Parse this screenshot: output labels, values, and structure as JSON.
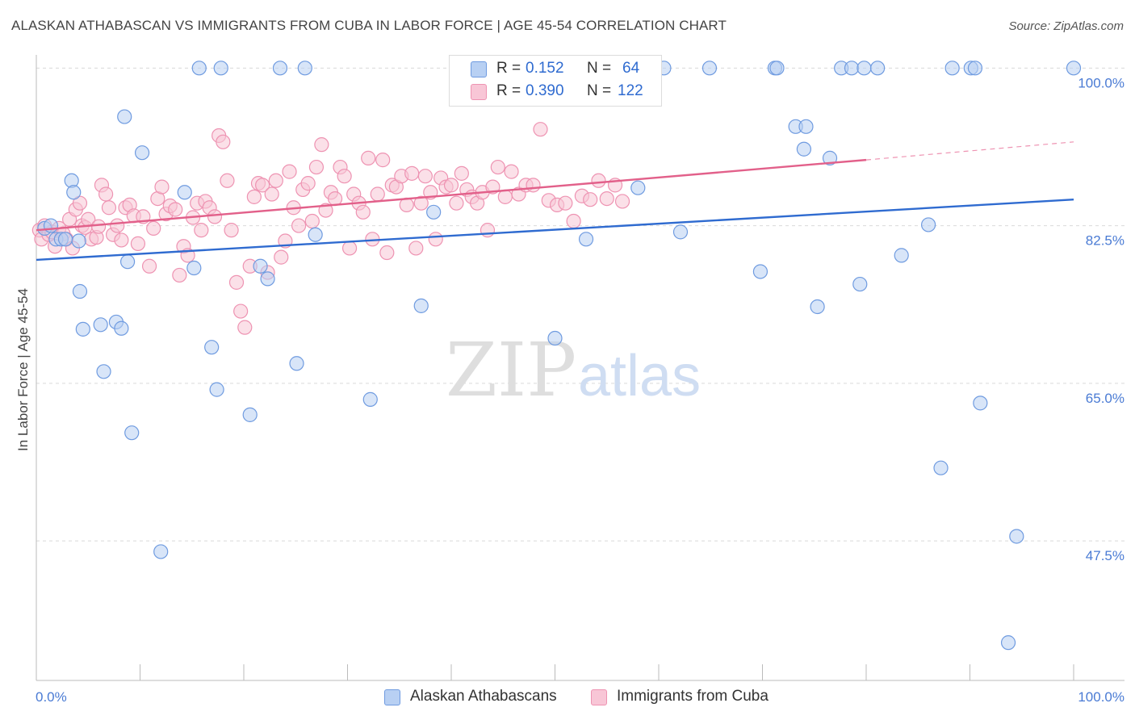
{
  "header": {
    "title": "ALASKAN ATHABASCAN VS IMMIGRANTS FROM CUBA IN LABOR FORCE | AGE 45-54 CORRELATION CHART",
    "source": "Source: ZipAtlas.com"
  },
  "watermark": {
    "zip": "ZIP",
    "atlas": "atlas"
  },
  "legend": {
    "r_label": "R =",
    "n_label": "N =",
    "series": [
      {
        "r": "0.152",
        "n": "64"
      },
      {
        "r": "0.390",
        "n": "122"
      }
    ]
  },
  "colors": {
    "blue_fill": "#b8d0f3",
    "blue_stroke": "#6f9be0",
    "blue_line": "#2f6bd0",
    "pink_fill": "#f8c6d6",
    "pink_stroke": "#ee93b2",
    "pink_line": "#e2608a",
    "grid": "#d9d9d9",
    "tick_text": "#4a7bd4"
  },
  "chart_data": {
    "type": "scatter",
    "xlabel": "",
    "ylabel": "In Labor Force | Age 45-54",
    "xlim": [
      0,
      100
    ],
    "ylim": [
      32,
      102
    ],
    "x_tick_labels": [
      "0.0%",
      "100.0%"
    ],
    "y_ticks": [
      47.5,
      65.0,
      82.5,
      100.0
    ],
    "y_tick_labels": [
      "47.5%",
      "65.0%",
      "82.5%",
      "100.0%"
    ],
    "grid": true,
    "legend_position": "top-center",
    "series": [
      {
        "name": "Alaskan Athabascans",
        "trend": {
          "x": [
            0,
            100
          ],
          "y": [
            78.7,
            85.4
          ]
        },
        "points": [
          [
            0.8,
            82.2
          ],
          [
            1.4,
            82.5
          ],
          [
            1.9,
            81.0
          ],
          [
            2.4,
            81.0
          ],
          [
            2.8,
            81.0
          ],
          [
            3.4,
            87.5
          ],
          [
            3.6,
            86.2
          ],
          [
            4.1,
            80.8
          ],
          [
            4.2,
            75.2
          ],
          [
            4.5,
            71.0
          ],
          [
            6.2,
            71.5
          ],
          [
            6.5,
            66.3
          ],
          [
            7.7,
            71.8
          ],
          [
            8.2,
            71.1
          ],
          [
            8.5,
            94.6
          ],
          [
            8.8,
            78.5
          ],
          [
            9.2,
            59.5
          ],
          [
            10.2,
            90.6
          ],
          [
            12.0,
            46.3
          ],
          [
            14.3,
            86.2
          ],
          [
            15.2,
            77.8
          ],
          [
            15.7,
            100.0
          ],
          [
            16.9,
            69.0
          ],
          [
            17.4,
            64.3
          ],
          [
            17.8,
            100.0
          ],
          [
            20.6,
            61.5
          ],
          [
            21.6,
            78.0
          ],
          [
            22.3,
            76.6
          ],
          [
            23.5,
            100.0
          ],
          [
            25.1,
            67.2
          ],
          [
            25.9,
            100.0
          ],
          [
            26.9,
            81.5
          ],
          [
            32.2,
            63.2
          ],
          [
            37.1,
            73.6
          ],
          [
            38.3,
            84.0
          ],
          [
            50.0,
            70.0
          ],
          [
            53.0,
            81.0
          ],
          [
            58.0,
            86.7
          ],
          [
            60.5,
            100.0
          ],
          [
            62.1,
            81.8
          ],
          [
            64.9,
            100.0
          ],
          [
            69.8,
            77.4
          ],
          [
            71.2,
            100.0
          ],
          [
            71.4,
            100.0
          ],
          [
            73.2,
            93.5
          ],
          [
            74.0,
            91.0
          ],
          [
            74.2,
            93.5
          ],
          [
            75.3,
            73.5
          ],
          [
            76.5,
            90.0
          ],
          [
            77.6,
            100.0
          ],
          [
            78.6,
            100.0
          ],
          [
            79.4,
            76.0
          ],
          [
            79.8,
            100.0
          ],
          [
            81.1,
            100.0
          ],
          [
            83.4,
            79.2
          ],
          [
            86.0,
            82.6
          ],
          [
            87.2,
            55.6
          ],
          [
            88.3,
            100.0
          ],
          [
            90.1,
            100.0
          ],
          [
            90.5,
            100.0
          ],
          [
            91.0,
            62.8
          ],
          [
            93.7,
            36.2
          ],
          [
            94.5,
            48.0
          ],
          [
            100.0,
            100.0
          ]
        ]
      },
      {
        "name": "Immigrants from Cuba",
        "trend": {
          "x": [
            0,
            80
          ],
          "y": [
            82.0,
            89.8
          ]
        },
        "trend_extension": {
          "x": [
            80,
            100
          ],
          "y": [
            89.8,
            91.8
          ]
        },
        "points": [
          [
            0.3,
            82.0
          ],
          [
            0.5,
            81.0
          ],
          [
            0.8,
            82.5
          ],
          [
            1.2,
            81.5
          ],
          [
            1.5,
            81.8
          ],
          [
            1.8,
            80.2
          ],
          [
            2.2,
            82.2
          ],
          [
            2.6,
            81.6
          ],
          [
            2.9,
            81.0
          ],
          [
            3.2,
            83.2
          ],
          [
            3.5,
            80.0
          ],
          [
            3.8,
            84.3
          ],
          [
            4.2,
            85.0
          ],
          [
            4.4,
            82.5
          ],
          [
            4.7,
            82.3
          ],
          [
            5.0,
            83.2
          ],
          [
            5.3,
            81.0
          ],
          [
            5.8,
            81.2
          ],
          [
            6.0,
            82.4
          ],
          [
            6.3,
            87.0
          ],
          [
            6.7,
            86.0
          ],
          [
            7.0,
            84.5
          ],
          [
            7.4,
            81.5
          ],
          [
            7.8,
            82.5
          ],
          [
            8.2,
            80.9
          ],
          [
            8.6,
            84.5
          ],
          [
            9.0,
            84.8
          ],
          [
            9.4,
            83.6
          ],
          [
            9.8,
            80.5
          ],
          [
            10.3,
            83.5
          ],
          [
            10.9,
            78.0
          ],
          [
            11.3,
            82.2
          ],
          [
            11.7,
            85.5
          ],
          [
            12.1,
            86.8
          ],
          [
            12.5,
            83.8
          ],
          [
            12.9,
            84.7
          ],
          [
            13.4,
            84.3
          ],
          [
            13.8,
            77.0
          ],
          [
            14.2,
            80.2
          ],
          [
            14.6,
            79.2
          ],
          [
            15.1,
            83.4
          ],
          [
            15.5,
            85.0
          ],
          [
            15.9,
            82.0
          ],
          [
            16.3,
            85.2
          ],
          [
            16.7,
            84.5
          ],
          [
            17.2,
            83.5
          ],
          [
            17.6,
            92.5
          ],
          [
            18.0,
            91.8
          ],
          [
            18.4,
            87.5
          ],
          [
            18.8,
            82.0
          ],
          [
            19.3,
            76.2
          ],
          [
            19.7,
            73.0
          ],
          [
            20.1,
            71.2
          ],
          [
            20.6,
            78.0
          ],
          [
            21.0,
            85.7
          ],
          [
            21.4,
            87.2
          ],
          [
            21.8,
            87.0
          ],
          [
            22.3,
            77.3
          ],
          [
            22.7,
            86.0
          ],
          [
            23.1,
            87.5
          ],
          [
            23.6,
            79.0
          ],
          [
            24.0,
            80.8
          ],
          [
            24.4,
            88.5
          ],
          [
            24.8,
            84.5
          ],
          [
            25.3,
            82.5
          ],
          [
            25.7,
            86.5
          ],
          [
            26.2,
            87.2
          ],
          [
            26.6,
            83.0
          ],
          [
            27.0,
            89.0
          ],
          [
            27.5,
            91.5
          ],
          [
            27.9,
            84.2
          ],
          [
            28.4,
            86.2
          ],
          [
            28.8,
            85.5
          ],
          [
            29.3,
            89.0
          ],
          [
            29.7,
            88.0
          ],
          [
            30.2,
            80.0
          ],
          [
            30.6,
            86.0
          ],
          [
            31.1,
            85.0
          ],
          [
            31.5,
            84.0
          ],
          [
            32.0,
            90.0
          ],
          [
            32.4,
            81.0
          ],
          [
            32.9,
            86.0
          ],
          [
            33.4,
            89.8
          ],
          [
            33.8,
            79.5
          ],
          [
            34.3,
            87.0
          ],
          [
            34.7,
            86.8
          ],
          [
            35.2,
            88.0
          ],
          [
            35.7,
            84.8
          ],
          [
            36.2,
            88.3
          ],
          [
            36.6,
            80.0
          ],
          [
            37.1,
            85.0
          ],
          [
            37.5,
            88.0
          ],
          [
            38.0,
            86.2
          ],
          [
            38.5,
            81.0
          ],
          [
            39.0,
            87.8
          ],
          [
            39.5,
            86.8
          ],
          [
            40.0,
            87.0
          ],
          [
            40.5,
            85.0
          ],
          [
            41.0,
            88.3
          ],
          [
            41.5,
            86.5
          ],
          [
            42.0,
            85.7
          ],
          [
            42.5,
            85.0
          ],
          [
            43.0,
            86.2
          ],
          [
            43.5,
            82.0
          ],
          [
            44.0,
            86.8
          ],
          [
            44.5,
            89.0
          ],
          [
            45.2,
            85.7
          ],
          [
            45.8,
            88.5
          ],
          [
            46.5,
            86.0
          ],
          [
            47.2,
            87.0
          ],
          [
            47.9,
            87.0
          ],
          [
            48.6,
            93.2
          ],
          [
            49.4,
            85.3
          ],
          [
            50.2,
            84.8
          ],
          [
            51.0,
            85.0
          ],
          [
            51.8,
            83.0
          ],
          [
            52.6,
            85.8
          ],
          [
            53.4,
            85.4
          ],
          [
            54.2,
            87.5
          ],
          [
            55.0,
            85.5
          ],
          [
            55.8,
            87.0
          ],
          [
            56.5,
            85.2
          ]
        ]
      }
    ]
  }
}
